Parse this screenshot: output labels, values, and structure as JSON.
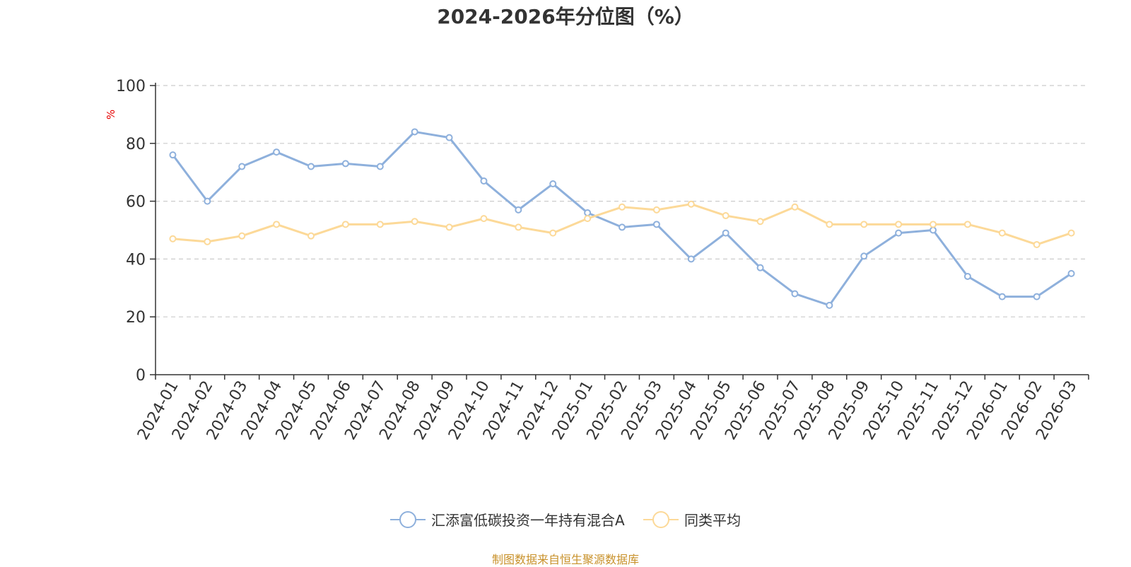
{
  "page": {
    "title": "2024-2026年分位图（%）",
    "source": "制图数据来自恒生聚源数据库"
  },
  "colors": {
    "series_a": "#8EB0DC",
    "series_b": "#FCD998",
    "axis": "#333333",
    "grid": "#CCCCCC",
    "unit": "#E60000",
    "source": "#C8912A"
  },
  "chart_data": {
    "type": "line",
    "title": "2024-2026年分位图（%）",
    "xlabel": "",
    "ylabel": "%",
    "ylim": [
      0,
      100
    ],
    "yticks": [
      0,
      20,
      40,
      60,
      80,
      100
    ],
    "grid": true,
    "legend_position": "bottom-center",
    "categories": [
      "2024-01",
      "2024-02",
      "2024-03",
      "2024-04",
      "2024-05",
      "2024-06",
      "2024-07",
      "2024-08",
      "2024-09",
      "2024-10",
      "2024-11",
      "2024-12",
      "2025-01",
      "2025-02",
      "2025-03",
      "2025-04",
      "2025-05",
      "2025-06",
      "2025-07",
      "2025-08",
      "2025-09",
      "2025-10",
      "2025-11",
      "2025-12",
      "2026-01",
      "2026-02",
      "2026-03"
    ],
    "series": [
      {
        "name": "汇添富低碳投资一年持有混合A",
        "color": "#8EB0DC",
        "values": [
          76,
          60,
          72,
          77,
          72,
          73,
          72,
          84,
          82,
          67,
          57,
          66,
          56,
          51,
          52,
          40,
          49,
          37,
          28,
          24,
          41,
          49,
          50,
          34,
          27,
          27,
          35
        ]
      },
      {
        "name": "同类平均",
        "color": "#FCD998",
        "values": [
          47,
          46,
          48,
          52,
          48,
          52,
          52,
          53,
          51,
          54,
          51,
          49,
          54,
          58,
          57,
          59,
          55,
          53,
          58,
          52,
          52,
          52,
          52,
          52,
          49,
          45,
          49
        ]
      }
    ]
  }
}
